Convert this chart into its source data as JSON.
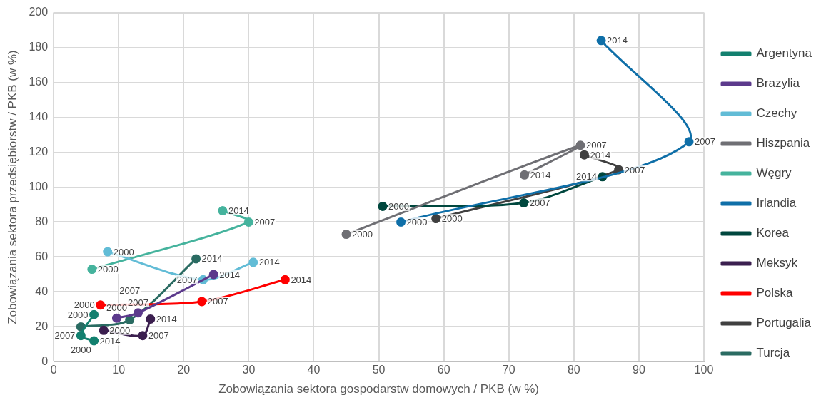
{
  "chart_data": {
    "type": "line",
    "xlabel": "Zobowiązania sektora gospodarstw domowych / PKB (w %)",
    "ylabel": "Zobowiązania sektora przedsiębiorstw / PKB (w %)",
    "xlim": [
      0,
      100
    ],
    "xticks": [
      0,
      10,
      20,
      30,
      40,
      50,
      60,
      70,
      80,
      90,
      100
    ],
    "ylim": [
      0,
      200
    ],
    "yticks": [
      0,
      20,
      40,
      60,
      80,
      100,
      120,
      140,
      160,
      180,
      200
    ],
    "grid": true,
    "legend": "right",
    "marker": "circle",
    "line_style": "solid",
    "series": [
      {
        "name": "Argentyna",
        "color": "#13806f",
        "x": [
          6.2,
          4.2,
          6.2
        ],
        "values": [
          27,
          15,
          12
        ]
      },
      {
        "name": "Brazylia",
        "color": "#5c3a8c",
        "x": [
          9.7,
          13,
          24.6
        ],
        "values": [
          25,
          28,
          50
        ]
      },
      {
        "name": "Czechy",
        "color": "#62bcd6",
        "x": [
          8.3,
          23,
          30.7
        ],
        "values": [
          63,
          47,
          57
        ]
      },
      {
        "name": "Hiszpania",
        "color": "#6f6f74",
        "x": [
          45,
          81,
          72.4
        ],
        "values": [
          73,
          124,
          107
        ]
      },
      {
        "name": "Węgry",
        "color": "#45b39d",
        "x": [
          5.9,
          30,
          26
        ],
        "values": [
          53,
          80,
          86.5
        ]
      },
      {
        "name": "Irlandia",
        "color": "#0f6fa8",
        "x": [
          53.4,
          97.7,
          84.2
        ],
        "values": [
          80,
          126,
          184
        ]
      },
      {
        "name": "Korea",
        "color": "#00473e",
        "x": [
          50.6,
          72.3,
          84.4
        ],
        "values": [
          89,
          91,
          106
        ]
      },
      {
        "name": "Meksyk",
        "color": "#3b1f4f",
        "x": [
          7.7,
          13.7,
          14.9
        ],
        "values": [
          18,
          15,
          24.5
        ]
      },
      {
        "name": "Polska",
        "color": "#ff0000",
        "x": [
          7.2,
          22.8,
          35.6
        ],
        "values": [
          32.5,
          34.5,
          47
        ]
      },
      {
        "name": "Portugalia",
        "color": "#404040",
        "x": [
          58.8,
          86.9,
          81.6
        ],
        "values": [
          82,
          110,
          118.5
        ]
      },
      {
        "name": "Turcja",
        "color": "#2a6b62",
        "x": [
          4.2,
          11.7,
          21.9
        ],
        "values": [
          20,
          24,
          59
        ]
      }
    ],
    "annotations": [
      {
        "text": "2000",
        "x": 6.2,
        "y": 27
      },
      {
        "text": "2007",
        "x": 4.2,
        "y": 15
      },
      {
        "text": "2014",
        "x": 6.2,
        "y": 12
      },
      {
        "text": "2000",
        "x": 9.7,
        "y": 25
      },
      {
        "text": "2007",
        "x": 13,
        "y": 28
      },
      {
        "text": "2014",
        "x": 24.6,
        "y": 50
      },
      {
        "text": "2000",
        "x": 8.3,
        "y": 63
      },
      {
        "text": "2007",
        "x": 23,
        "y": 47
      },
      {
        "text": "2014",
        "x": 30.7,
        "y": 57
      },
      {
        "text": "2000",
        "x": 45,
        "y": 73
      },
      {
        "text": "2007",
        "x": 81,
        "y": 124
      },
      {
        "text": "2014",
        "x": 72.4,
        "y": 107
      },
      {
        "text": "2000",
        "x": 5.9,
        "y": 53
      },
      {
        "text": "2007",
        "x": 30,
        "y": 80
      },
      {
        "text": "2014",
        "x": 26,
        "y": 86.5
      },
      {
        "text": "2000",
        "x": 53.4,
        "y": 80
      },
      {
        "text": "2007",
        "x": 97.7,
        "y": 126
      },
      {
        "text": "2014",
        "x": 84.2,
        "y": 184
      },
      {
        "text": "2000",
        "x": 50.6,
        "y": 89
      },
      {
        "text": "2007",
        "x": 72.3,
        "y": 91
      },
      {
        "text": "2014",
        "x": 84.4,
        "y": 106
      },
      {
        "text": "2000",
        "x": 7.7,
        "y": 18
      },
      {
        "text": "2007",
        "x": 13.7,
        "y": 15
      },
      {
        "text": "2014",
        "x": 14.9,
        "y": 24.5
      },
      {
        "text": "2000",
        "x": 7.2,
        "y": 32.5
      },
      {
        "text": "2007",
        "x": 22.8,
        "y": 34.5
      },
      {
        "text": "2014",
        "x": 35.6,
        "y": 47
      },
      {
        "text": "2000",
        "x": 58.8,
        "y": 82
      },
      {
        "text": "2007",
        "x": 86.9,
        "y": 110
      },
      {
        "text": "2014",
        "x": 81.6,
        "y": 118.5
      },
      {
        "text": "2000",
        "x": 4.2,
        "y": 20
      },
      {
        "text": "2007",
        "x": 11.7,
        "y": 24
      },
      {
        "text": "2014",
        "x": 21.9,
        "y": 59
      }
    ]
  }
}
